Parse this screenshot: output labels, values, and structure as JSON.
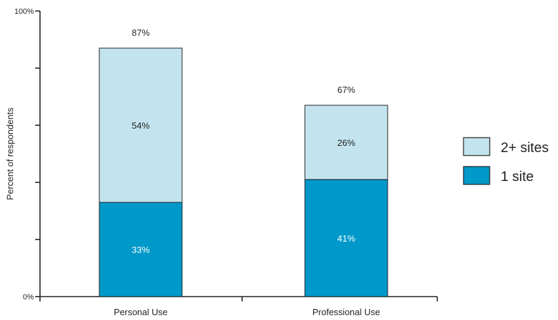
{
  "chart_data": {
    "type": "bar",
    "stacked": true,
    "categories": [
      "Personal Use",
      "Professional Use"
    ],
    "series": [
      {
        "name": "1 site",
        "values": [
          33,
          41
        ],
        "labels": [
          "33%",
          "41%"
        ],
        "color": "#0099c9",
        "label_color": "#ffffff"
      },
      {
        "name": "2+ sites",
        "values": [
          54,
          26
        ],
        "labels": [
          "54%",
          "26%"
        ],
        "color": "#c3e4ef",
        "label_color": "#222222"
      }
    ],
    "totals": [
      "87%",
      "67%"
    ],
    "ylabel": "Percent of respondents",
    "ylim": [
      0,
      100
    ],
    "ytick_labels": {
      "min": "0%",
      "max": "100%"
    },
    "legend": {
      "position": "right",
      "order": [
        "2+ sites",
        "1 site"
      ]
    },
    "grid": false
  }
}
